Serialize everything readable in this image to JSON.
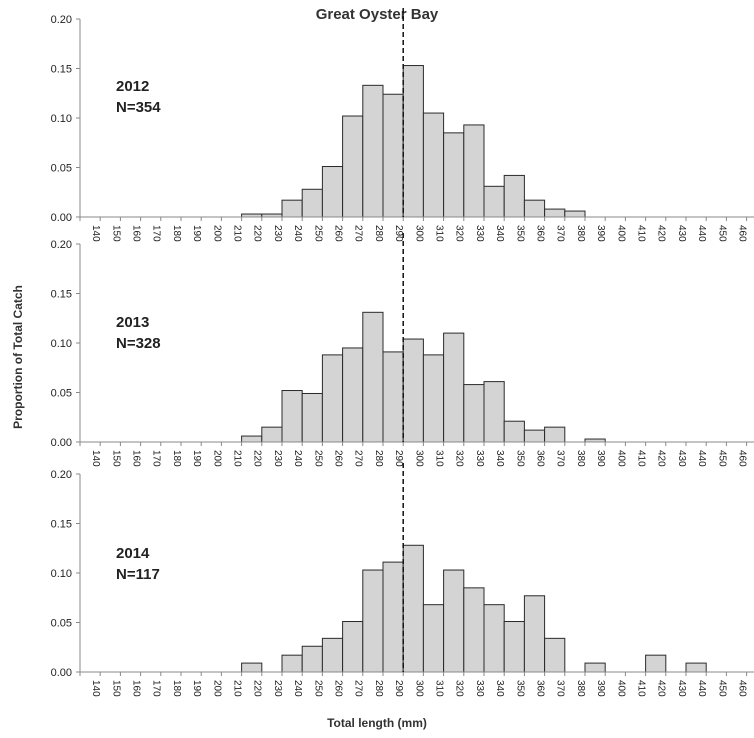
{
  "figure": {
    "title": "Great Oyster Bay",
    "ylabel": "Proportion of Total Catch",
    "xlabel": "Total length (mm)"
  },
  "chart_data": [
    {
      "type": "bar",
      "year_label": "2012",
      "n_label": "N=354",
      "categories": [
        "140",
        "150",
        "160",
        "170",
        "180",
        "190",
        "200",
        "210",
        "220",
        "230",
        "240",
        "250",
        "260",
        "270",
        "280",
        "290",
        "300",
        "310",
        "320",
        "330",
        "340",
        "350",
        "360",
        "370",
        "380",
        "390",
        "400",
        "410",
        "420",
        "430",
        "440",
        "450",
        "460",
        "470"
      ],
      "values": [
        0,
        0,
        0,
        0,
        0,
        0,
        0,
        0,
        0.003,
        0.003,
        0.017,
        0.028,
        0.051,
        0.102,
        0.133,
        0.124,
        0.153,
        0.105,
        0.085,
        0.093,
        0.031,
        0.042,
        0.017,
        0.008,
        0.006,
        0,
        0,
        0,
        0,
        0,
        0,
        0,
        0,
        0
      ],
      "y_ticks": [
        "0.00",
        "0.05",
        "0.10",
        "0.15",
        "0.20"
      ],
      "ylim": [
        0,
        0.2
      ],
      "reference_line": 295
    },
    {
      "type": "bar",
      "year_label": "2013",
      "n_label": "N=328",
      "categories": [
        "140",
        "150",
        "160",
        "170",
        "180",
        "190",
        "200",
        "210",
        "220",
        "230",
        "240",
        "250",
        "260",
        "270",
        "280",
        "290",
        "300",
        "310",
        "320",
        "330",
        "340",
        "350",
        "360",
        "370",
        "380",
        "390",
        "400",
        "410",
        "420",
        "430",
        "440",
        "450",
        "460",
        "470"
      ],
      "values": [
        0,
        0,
        0,
        0,
        0,
        0,
        0,
        0,
        0.006,
        0.015,
        0.052,
        0.049,
        0.088,
        0.095,
        0.131,
        0.091,
        0.104,
        0.088,
        0.11,
        0.058,
        0.061,
        0.021,
        0.012,
        0.015,
        0,
        0.003,
        0,
        0,
        0,
        0,
        0,
        0,
        0,
        0
      ],
      "y_ticks": [
        "0.00",
        "0.05",
        "0.10",
        "0.15",
        "0.20"
      ],
      "ylim": [
        0,
        0.2
      ],
      "reference_line": 295
    },
    {
      "type": "bar",
      "year_label": "2014",
      "n_label": "N=117",
      "categories": [
        "140",
        "150",
        "160",
        "170",
        "180",
        "190",
        "200",
        "210",
        "220",
        "230",
        "240",
        "250",
        "260",
        "270",
        "280",
        "290",
        "300",
        "310",
        "320",
        "330",
        "340",
        "350",
        "360",
        "370",
        "380",
        "390",
        "400",
        "410",
        "420",
        "430",
        "440",
        "450",
        "460",
        "470"
      ],
      "values": [
        0,
        0,
        0,
        0,
        0,
        0,
        0,
        0,
        0.009,
        0,
        0.017,
        0.026,
        0.034,
        0.051,
        0.103,
        0.111,
        0.128,
        0.068,
        0.103,
        0.085,
        0.068,
        0.051,
        0.077,
        0.034,
        0,
        0.009,
        0,
        0,
        0.017,
        0,
        0.009,
        0,
        0,
        0
      ],
      "y_ticks": [
        "0.00",
        "0.05",
        "0.10",
        "0.15",
        "0.20"
      ],
      "ylim": [
        0,
        0.2
      ],
      "reference_line": 295
    }
  ],
  "colors": {
    "bar_fill": "#d4d4d4",
    "bar_stroke": "#2b2b2b",
    "axis": "#888888",
    "text": "#222222"
  }
}
